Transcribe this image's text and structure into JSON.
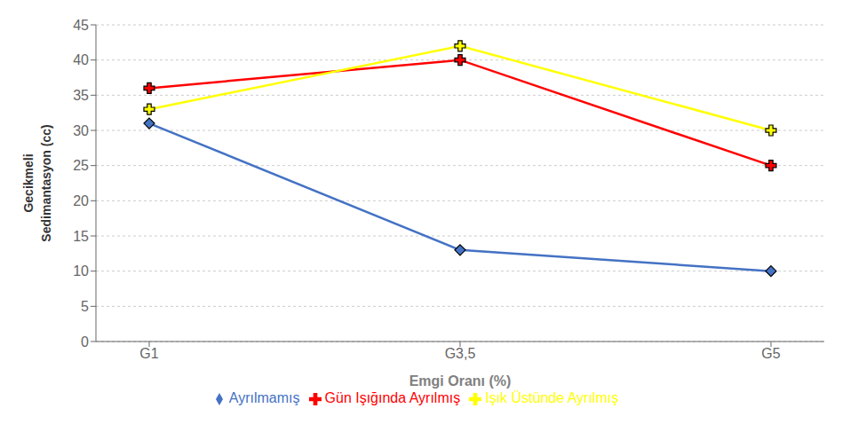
{
  "chart_data": {
    "type": "line",
    "categories": [
      "G1",
      "G3,5",
      "G5"
    ],
    "series": [
      {
        "name": "Ayrılmamış",
        "color": "#4472C4",
        "marker": "diamond",
        "values": [
          31,
          13,
          10
        ]
      },
      {
        "name": "Gün Işığında Ayrılmış",
        "color": "#FF0000",
        "marker": "plus",
        "values": [
          36,
          40,
          25
        ]
      },
      {
        "name": "Işık Üstünde Ayrılmış",
        "color": "#FFFF00",
        "marker": "plus",
        "values": [
          33,
          42,
          30
        ]
      }
    ],
    "xlabel": "Emgi Oranı (%)",
    "ylabel": [
      "Gecikmeli",
      "Sedimantasyon (cc)"
    ],
    "ylim": [
      0,
      45
    ],
    "yticks": [
      0,
      5,
      10,
      15,
      20,
      25,
      30,
      35,
      40,
      45
    ],
    "grid": true,
    "legend": "bottom"
  }
}
